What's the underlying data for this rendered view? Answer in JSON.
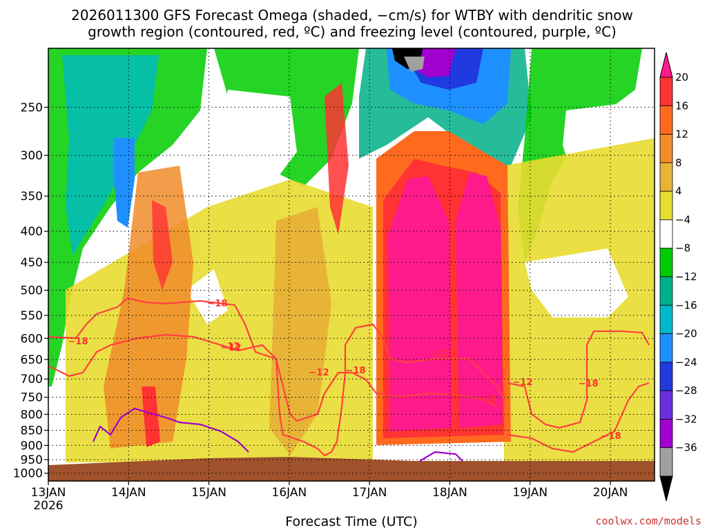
{
  "chart_data": {
    "type": "heatmap",
    "title_lines": [
      "2026011300 GFS Forecast Omega (shaded, −cm/s) for WTBY with dendritic snow",
      "growth region (contoured, red, ºC) and freezing level (contoured, purple, ºC)"
    ],
    "xlabel": "Forecast Time (UTC)",
    "ylabel": "",
    "x_ticks": [
      "13JAN",
      "14JAN",
      "15JAN",
      "16JAN",
      "17JAN",
      "18JAN",
      "19JAN",
      "20JAN"
    ],
    "x_year": "2026",
    "y_ticks": [
      "250",
      "300",
      "350",
      "400",
      "450",
      "500",
      "550",
      "600",
      "650",
      "700",
      "750",
      "800",
      "850",
      "900",
      "950",
      "1000"
    ],
    "y_scale": "log-pressure",
    "grid": true,
    "colorbar": {
      "labels": [
        "20",
        "16",
        "12",
        "8",
        "4",
        "−4",
        "−8",
        "−12",
        "−16",
        "−20",
        "−24",
        "−28",
        "−32",
        "−36"
      ],
      "colors": [
        "#ff1a8c",
        "#ff3333",
        "#ff6a1f",
        "#f08c2a",
        "#e8b438",
        "#e8dc30",
        "#ffffff",
        "#00cc00",
        "#00b088",
        "#00b8c8",
        "#1e90ff",
        "#1f3adf",
        "#6a2ee0",
        "#a000d0",
        "#a0a0a0",
        "#000000"
      ]
    },
    "contour_labels": [
      {
        "text": "−18",
        "color": "red"
      },
      {
        "text": "−12",
        "color": "red"
      },
      {
        "text": "−18",
        "color": "red"
      },
      {
        "text": "−12",
        "color": "red"
      },
      {
        "text": "−18",
        "color": "red"
      },
      {
        "text": "−12",
        "color": "red"
      },
      {
        "text": "−18",
        "color": "red"
      },
      {
        "text": "−12",
        "color": "red"
      },
      {
        "text": "−18",
        "color": "red"
      },
      {
        "text": "−18",
        "color": "red"
      },
      {
        "text": "−12",
        "color": "red"
      }
    ],
    "credit": "coolwx.com/models"
  }
}
